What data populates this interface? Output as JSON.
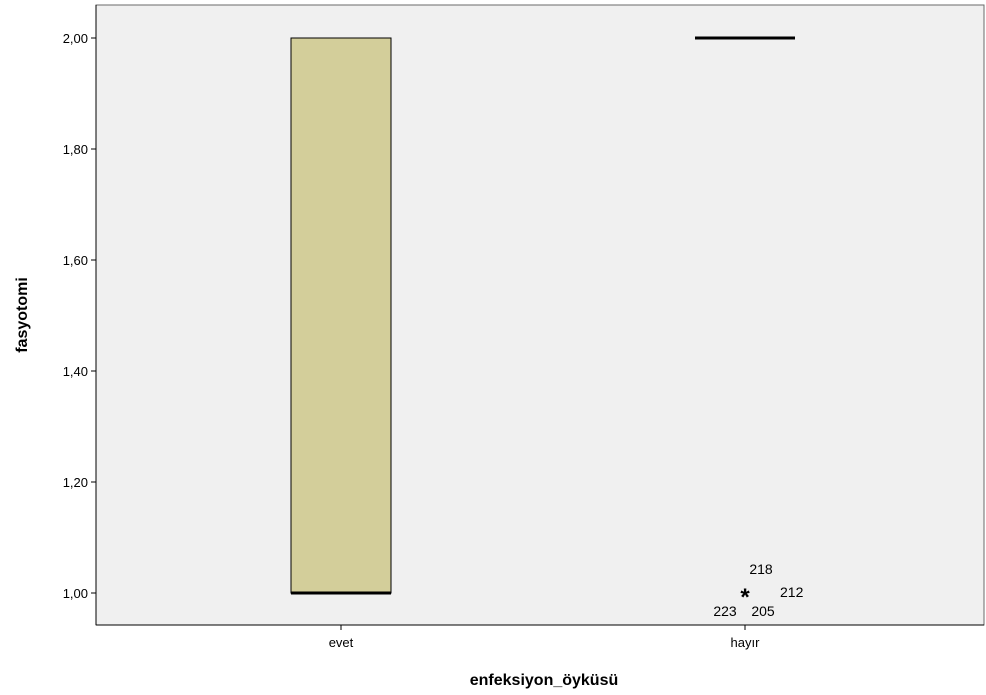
{
  "chart_data": {
    "type": "boxplot",
    "xlabel": "enfeksiyon_öyküsü",
    "ylabel": "fasyotomi",
    "ylim": [
      0.94,
      2.06
    ],
    "yticks": [
      1.0,
      1.2,
      1.4,
      1.6,
      1.8,
      2.0
    ],
    "ytick_labels": [
      "1,00",
      "1,20",
      "1,40",
      "1,60",
      "1,80",
      "2,00"
    ],
    "categories": [
      "evet",
      "hayır"
    ],
    "boxes": [
      {
        "category": "evet",
        "min": 1.0,
        "q1": 1.0,
        "median": 1.0,
        "q3": 2.0,
        "max": 2.0
      },
      {
        "category": "hayır",
        "min": 2.0,
        "q1": 2.0,
        "median": 2.0,
        "q3": 2.0,
        "max": 2.0
      }
    ],
    "outliers": [
      {
        "category": "hayır",
        "value": 1.0,
        "marker": "*",
        "labels": [
          "218",
          "212",
          "205",
          "223"
        ]
      }
    ],
    "colors": {
      "box_fill": "#d3ce9a",
      "plot_bg": "#f0f0f0",
      "border": "#000000"
    },
    "grid": false
  }
}
